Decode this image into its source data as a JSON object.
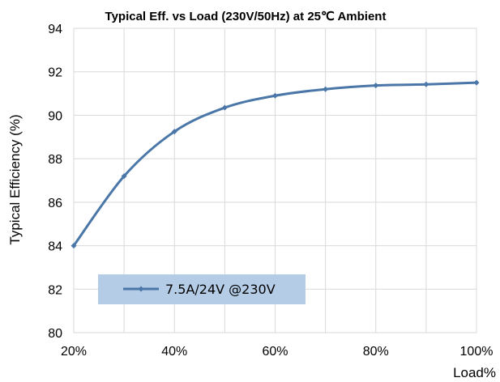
{
  "chart_data": {
    "type": "line",
    "title": "Typical Eff. vs Load (230V/50Hz) at 25℃ Ambient",
    "xlabel": "Load%",
    "ylabel": "Typical Efficiency (%)",
    "x_tick_labels": [
      "20%",
      "40%",
      "60%",
      "80%",
      "100%"
    ],
    "y_tick_labels": [
      "80",
      "82",
      "84",
      "86",
      "88",
      "90",
      "92",
      "94"
    ],
    "xlim": [
      20,
      100
    ],
    "ylim": [
      80,
      94
    ],
    "x_ticks": [
      20,
      40,
      60,
      80,
      100
    ],
    "y_ticks": [
      80,
      82,
      84,
      86,
      88,
      90,
      92,
      94
    ],
    "grid": true,
    "legend_position": "bottom-left",
    "series": [
      {
        "name": "7.5A/24V @230V",
        "color": "#4a77a8",
        "x": [
          20,
          30,
          40,
          50,
          60,
          70,
          80,
          90,
          100
        ],
        "y": [
          84.0,
          87.2,
          89.25,
          90.35,
          90.9,
          91.2,
          91.37,
          91.42,
          91.5
        ]
      }
    ],
    "legend_background": "#b4cce6"
  }
}
